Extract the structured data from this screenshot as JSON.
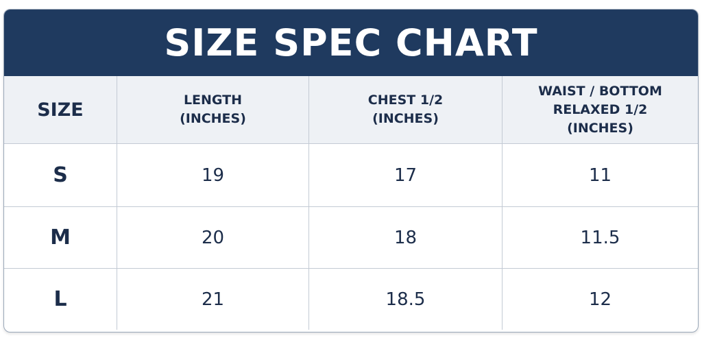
{
  "title": "SIZE SPEC CHART",
  "table": {
    "columns": [
      [
        "SIZE"
      ],
      [
        "LENGTH",
        "(INCHES)"
      ],
      [
        "CHEST 1/2",
        "(INCHES)"
      ],
      [
        "WAIST / BOTTOM",
        "RELAXED 1/2",
        "(INCHES)"
      ]
    ],
    "rows": [
      [
        "S",
        19,
        17,
        11
      ],
      [
        "M",
        20,
        18,
        11.5
      ],
      [
        "L",
        21,
        18.5,
        12
      ]
    ]
  }
}
